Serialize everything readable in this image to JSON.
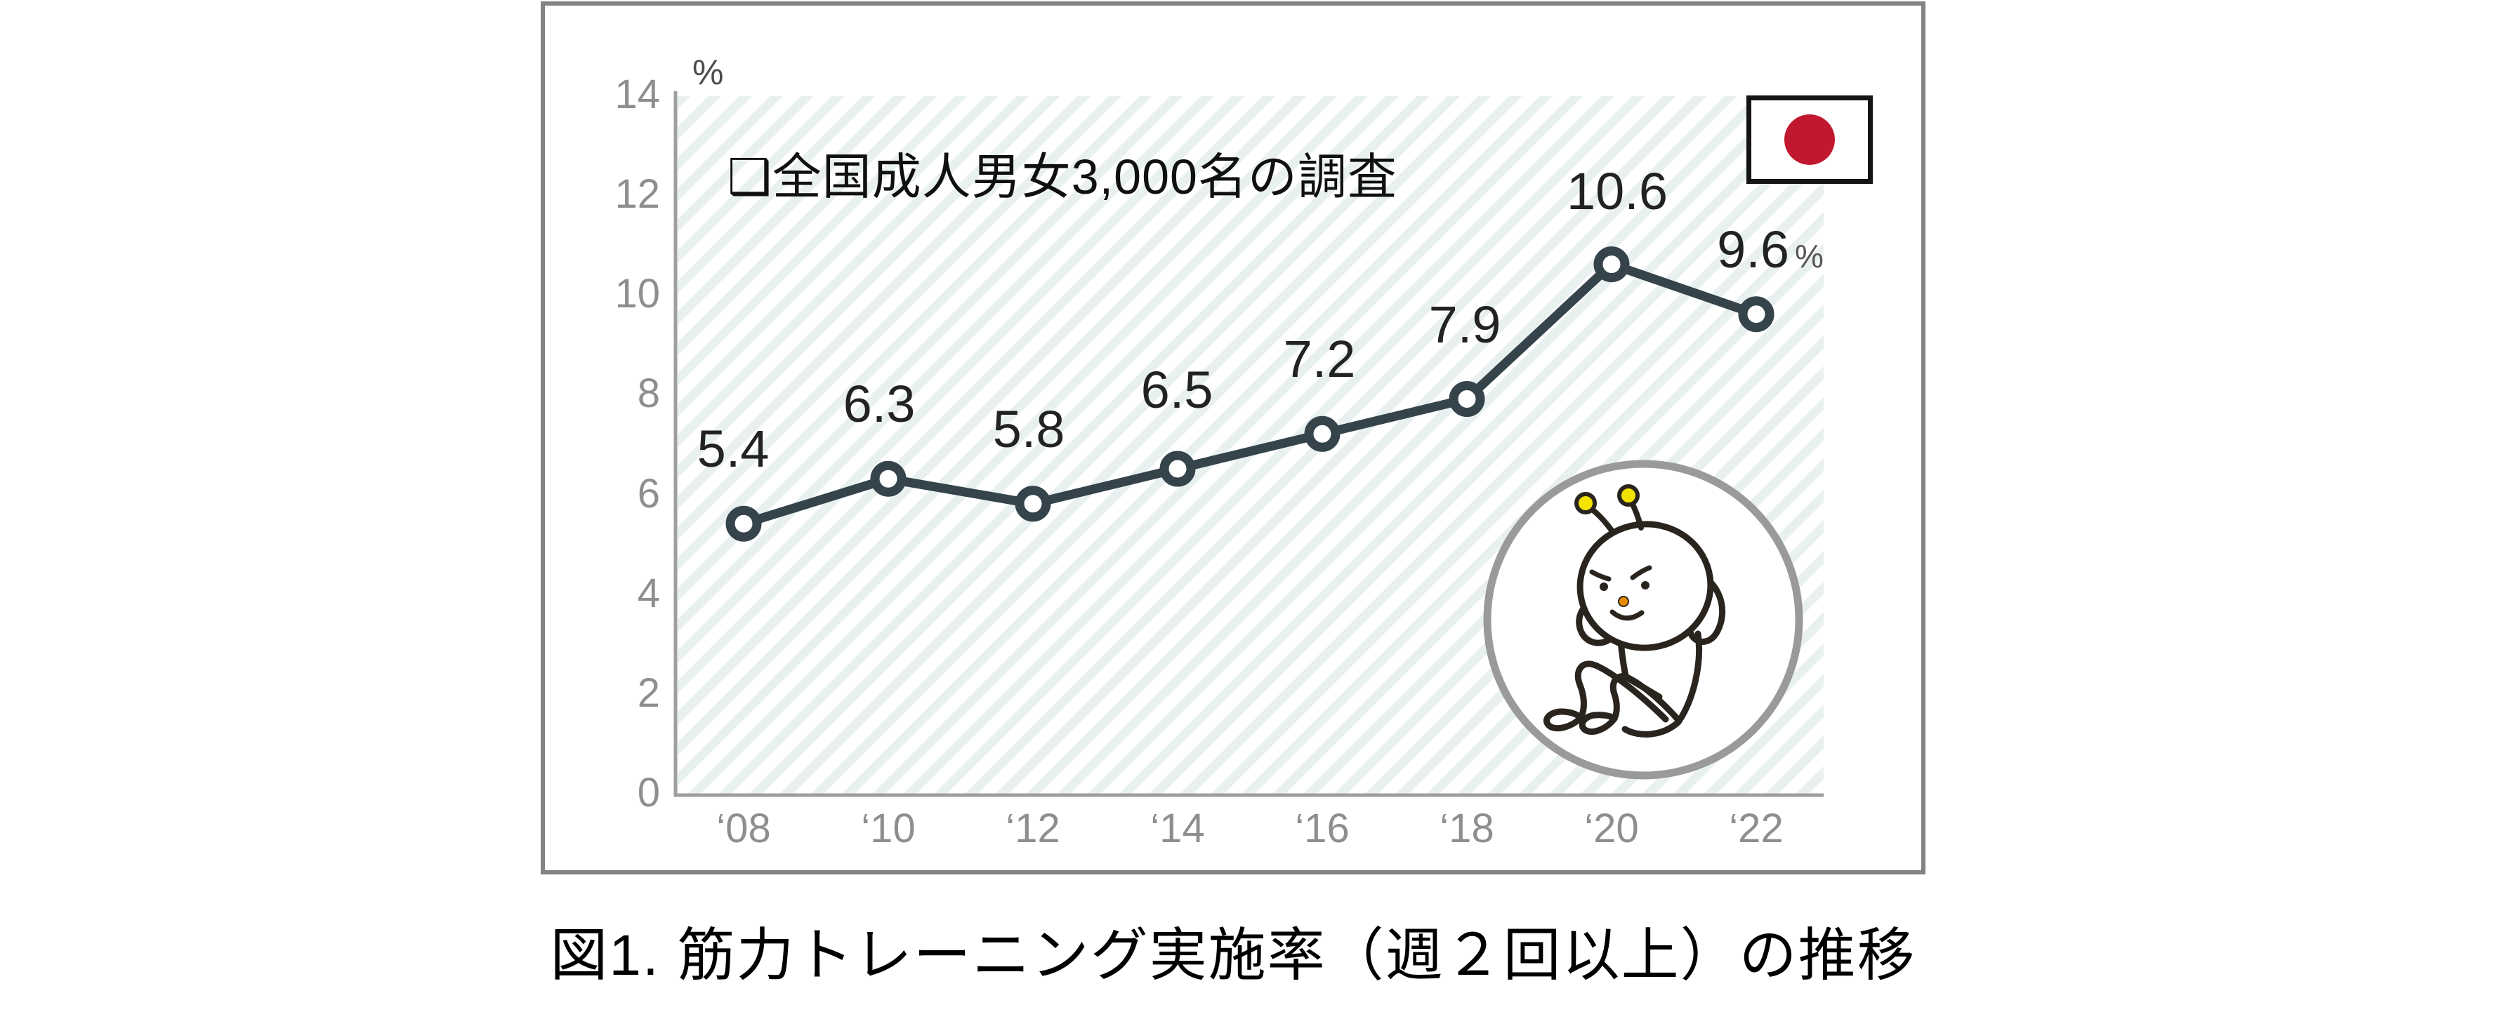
{
  "page": {
    "background": "#ffffff"
  },
  "frame": {
    "border_color": "#828282"
  },
  "chart_data": {
    "type": "line",
    "title": "図1. 筋力トレーニング実施率（週２回以上）の推移",
    "annotation": "❑全国成人男女3,000名の調査",
    "xlabel": "",
    "ylabel": "%",
    "categories": [
      "‘08",
      "‘10",
      "‘12",
      "‘14",
      "‘16",
      "‘18",
      "‘20",
      "‘22"
    ],
    "values": [
      5.4,
      6.3,
      5.8,
      6.5,
      7.2,
      7.9,
      10.6,
      9.6
    ],
    "data_labels": [
      "5.4",
      "6.3",
      "5.8",
      "6.5",
      "7.2",
      "7.9",
      "10.6",
      "9.6"
    ],
    "last_value_suffix": "%",
    "ylim": [
      0,
      14
    ],
    "y_ticks": [
      0,
      2,
      4,
      6,
      8,
      10,
      12,
      14
    ],
    "grid": false,
    "legend": "none",
    "line_color": "#35434b",
    "marker": "open-circle",
    "marker_fill": "#ffffff",
    "axis_color": "#9e9e9e",
    "tick_text_color": "#8e8e8e",
    "label_text_color": "#222222",
    "plot_stripe_color": "#e9f1f0"
  },
  "icons": {
    "flag": {
      "name": "japan-flag",
      "sun_color": "#c11830",
      "border_color": "#141414"
    },
    "mascot": {
      "name": "situp-training-character",
      "antenna_color": "#f2e300",
      "outline_color": "#2a241e",
      "nose_color": "#e78c00",
      "circle_border_color": "#9a9a9a"
    }
  }
}
